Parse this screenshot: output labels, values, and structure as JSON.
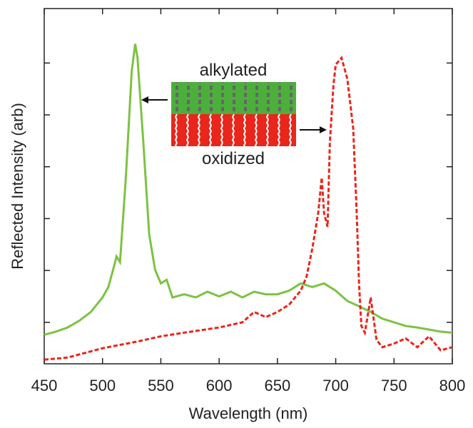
{
  "chart_data": {
    "type": "line",
    "xlabel": "Wavelength (nm)",
    "ylabel": "Reflected Intensity (arb)",
    "xlim": [
      450,
      800
    ],
    "xticks": [
      450,
      500,
      550,
      600,
      650,
      700,
      750,
      800
    ],
    "ylim": [
      -0.8,
      6.05
    ],
    "yticks": [
      0,
      1,
      2,
      3,
      4,
      5
    ],
    "annotations": [
      "alkylated",
      "oxidized"
    ],
    "series": [
      {
        "color": "#7dc242",
        "dash": false,
        "x": [
          450,
          460,
          470,
          480,
          490,
          500,
          505,
          510,
          512,
          515,
          520,
          525,
          528,
          530,
          535,
          540,
          545,
          550,
          555,
          560,
          570,
          580,
          590,
          600,
          610,
          620,
          630,
          640,
          650,
          660,
          670,
          680,
          690,
          700,
          710,
          720,
          730,
          740,
          750,
          760,
          770,
          780,
          790,
          800
        ],
        "values": [
          -0.24,
          -0.18,
          -0.1,
          0.03,
          0.2,
          0.48,
          0.68,
          1.09,
          1.27,
          1.16,
          2.79,
          4.83,
          5.37,
          5.1,
          3.47,
          1.7,
          1.02,
          0.75,
          0.82,
          0.48,
          0.54,
          0.48,
          0.59,
          0.5,
          0.59,
          0.48,
          0.59,
          0.54,
          0.54,
          0.61,
          0.75,
          0.68,
          0.75,
          0.61,
          0.41,
          0.31,
          0.2,
          0.07,
          0,
          -0.07,
          -0.1,
          -0.14,
          -0.18,
          -0.2
        ]
      },
      {
        "color": "#e8261c",
        "dash": true,
        "x": [
          450,
          470,
          500,
          530,
          550,
          570,
          600,
          620,
          630,
          640,
          650,
          660,
          670,
          675,
          680,
          685,
          688,
          690,
          693,
          695,
          698,
          700,
          705,
          710,
          715,
          718,
          720,
          722,
          725,
          730,
          735,
          740,
          750,
          760,
          770,
          780,
          790,
          800
        ],
        "values": [
          -0.72,
          -0.68,
          -0.5,
          -0.37,
          -0.27,
          -0.2,
          -0.1,
          0,
          0.2,
          0.1,
          0.2,
          0.34,
          0.61,
          0.88,
          1.43,
          2.11,
          2.79,
          2.11,
          1.84,
          3.47,
          4.56,
          4.97,
          5.1,
          4.69,
          3.74,
          2.11,
          0.75,
          -0.07,
          -0.2,
          0.48,
          -0.34,
          -0.48,
          -0.41,
          -0.31,
          -0.48,
          -0.27,
          -0.54,
          -0.48
        ]
      }
    ]
  }
}
